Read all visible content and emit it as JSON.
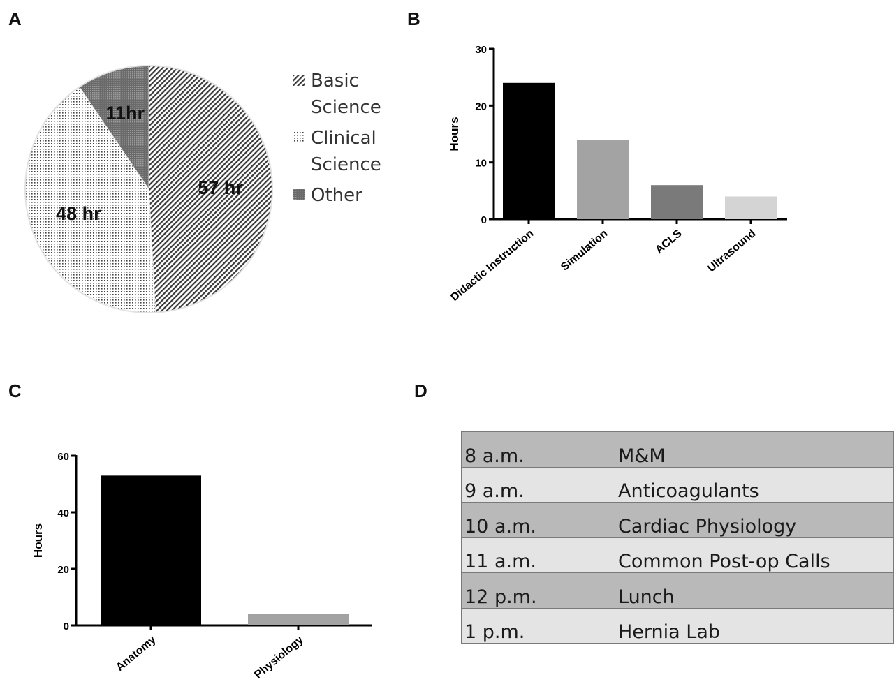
{
  "panels": {
    "a": "A",
    "b": "B",
    "c": "C",
    "d": "D"
  },
  "chart_data": [
    {
      "type": "pie",
      "slices": [
        {
          "label": "Basic Science",
          "value": 57,
          "data_label": "57 hr",
          "pattern": "diagonal-hatch"
        },
        {
          "label": "Clinical Science",
          "value": 48,
          "data_label": "48 hr",
          "pattern": "dots"
        },
        {
          "label": "Other",
          "value": 11,
          "data_label": "11hr",
          "pattern": "crosshatch"
        }
      ],
      "legend": {
        "placement": "right",
        "entries": [
          [
            "Basic",
            "Science"
          ],
          [
            "Clinical",
            "Science"
          ],
          [
            "Other"
          ]
        ]
      }
    },
    {
      "type": "bar",
      "categories": [
        "Didactic Instruction",
        "Simulation",
        "ACLS",
        "Ultrasound"
      ],
      "values": [
        24,
        14,
        6,
        4
      ],
      "colors": [
        "#000000",
        "#a3a3a3",
        "#7a7a7a",
        "#d4d4d4"
      ],
      "ylabel": "Hours",
      "ylim": [
        0,
        30
      ],
      "yticks": [
        0,
        10,
        20,
        30
      ]
    },
    {
      "type": "bar",
      "categories": [
        "Anatomy",
        "Physiology"
      ],
      "values": [
        53,
        4
      ],
      "colors": [
        "#000000",
        "#a3a3a3"
      ],
      "ylabel": "Hours",
      "ylim": [
        0,
        60
      ],
      "yticks": [
        0,
        20,
        40,
        60
      ]
    },
    {
      "type": "table",
      "rows": [
        [
          "8 a.m.",
          "M&M"
        ],
        [
          "9 a.m.",
          "Anticoagulants"
        ],
        [
          "10 a.m.",
          "Cardiac Physiology"
        ],
        [
          "11 a.m.",
          "Common Post-op Calls"
        ],
        [
          "12 p.m.",
          "Lunch"
        ],
        [
          "1 p.m.",
          "Hernia Lab"
        ]
      ]
    }
  ]
}
